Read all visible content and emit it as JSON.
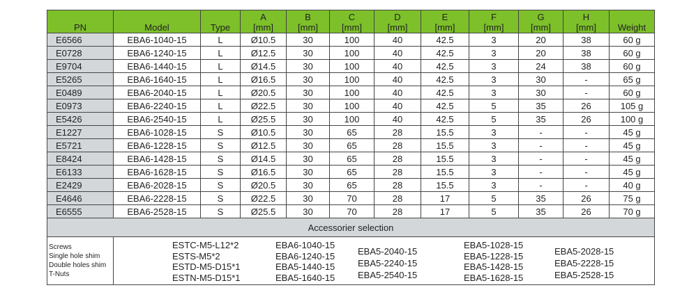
{
  "headers": [
    [
      "PN",
      ""
    ],
    [
      "Model",
      ""
    ],
    [
      "Type",
      ""
    ],
    [
      "A",
      "[mm]"
    ],
    [
      "B",
      "[mm]"
    ],
    [
      "C",
      "[mm]"
    ],
    [
      "D",
      "[mm]"
    ],
    [
      "E",
      "[mm]"
    ],
    [
      "F",
      "[mm]"
    ],
    [
      "G",
      "[mm]"
    ],
    [
      "H",
      "[mm]"
    ],
    [
      "Weight",
      ""
    ]
  ],
  "rows": [
    [
      "E6566",
      "EBA6-1040-15",
      "L",
      "Ø10.5",
      "30",
      "100",
      "40",
      "42.5",
      "3",
      "20",
      "38",
      "60 g"
    ],
    [
      "E0728",
      "EBA6-1240-15",
      "L",
      "Ø12.5",
      "30",
      "100",
      "40",
      "42.5",
      "3",
      "20",
      "38",
      "60 g"
    ],
    [
      "E9704",
      "EBA6-1440-15",
      "L",
      "Ø14.5",
      "30",
      "100",
      "40",
      "42.5",
      "3",
      "24",
      "38",
      "60 g"
    ],
    [
      "E5265",
      "EBA6-1640-15",
      "L",
      "Ø16.5",
      "30",
      "100",
      "40",
      "42.5",
      "3",
      "30",
      "-",
      "65 g"
    ],
    [
      "E0489",
      "EBA6-2040-15",
      "L",
      "Ø20.5",
      "30",
      "100",
      "40",
      "42.5",
      "3",
      "30",
      "-",
      "60 g"
    ],
    [
      "E0973",
      "EBA6-2240-15",
      "L",
      "Ø22.5",
      "30",
      "100",
      "40",
      "42.5",
      "5",
      "35",
      "26",
      "105 g"
    ],
    [
      "E5426",
      "EBA6-2540-15",
      "L",
      "Ø25.5",
      "30",
      "100",
      "40",
      "42.5",
      "5",
      "35",
      "26",
      "100 g"
    ],
    [
      "E1227",
      "EBA6-1028-15",
      "S",
      "Ø10.5",
      "30",
      "65",
      "28",
      "15.5",
      "3",
      "-",
      "-",
      "45 g"
    ],
    [
      "E5721",
      "EBA6-1228-15",
      "S",
      "Ø12.5",
      "30",
      "65",
      "28",
      "15.5",
      "3",
      "-",
      "-",
      "45 g"
    ],
    [
      "E8424",
      "EBA6-1428-15",
      "S",
      "Ø14.5",
      "30",
      "65",
      "28",
      "15.5",
      "3",
      "-",
      "-",
      "45 g"
    ],
    [
      "E6133",
      "EBA6-1628-15",
      "S",
      "Ø16.5",
      "30",
      "65",
      "28",
      "15.5",
      "3",
      "-",
      "-",
      "45 g"
    ],
    [
      "E2429",
      "EBA6-2028-15",
      "S",
      "Ø20.5",
      "30",
      "65",
      "28",
      "15.5",
      "3",
      "-",
      "-",
      "40 g"
    ],
    [
      "E4646",
      "EBA6-2228-15",
      "S",
      "Ø22.5",
      "30",
      "70",
      "28",
      "17",
      "5",
      "35",
      "26",
      "75 g"
    ],
    [
      "E6555",
      "EBA6-2528-15",
      "S",
      "Ø25.5",
      "30",
      "70",
      "28",
      "17",
      "5",
      "35",
      "26",
      "70 g"
    ]
  ],
  "accessories": {
    "title": "Accessorier selection",
    "labels": [
      "Screws",
      "Single hole shim",
      "Double holes shim",
      "T-Nuts"
    ],
    "columns": [
      [
        "ESTC-M5-L12*2",
        "ESTS-M5*2",
        "ESTD-M5-D15*1",
        "ESTN-M5-D15*1"
      ],
      [
        "EBA6-1040-15",
        "EBA6-1240-15",
        "EBA5-1440-15",
        "EBA5-1640-15"
      ],
      [
        "EBA5-2040-15",
        "EBA5-2240-15",
        "EBA5-2540-15"
      ],
      [
        "EBA5-1028-15",
        "EBA5-1228-15",
        "EBA5-1428-15",
        "EBA5-1628-15"
      ],
      [
        "EBA5-2028-15",
        "EBA5-2228-15",
        "EBA5-2528-15"
      ]
    ]
  },
  "colors": {
    "header_green": "#7dc02a",
    "grey": "#d3d7da"
  }
}
